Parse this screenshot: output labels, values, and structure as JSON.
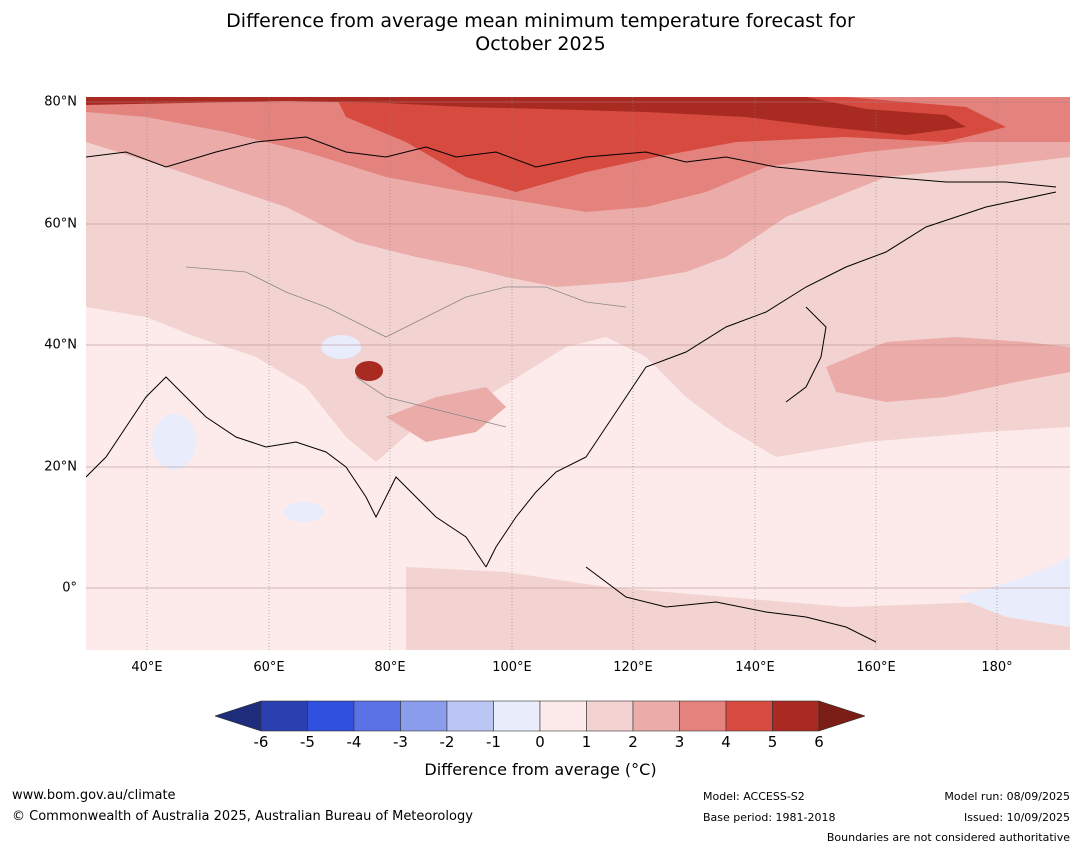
{
  "title_line1": "Difference from average mean minimum temperature forecast for",
  "title_line2": "October 2025",
  "lat_labels": [
    "80°N",
    "60°N",
    "40°N",
    "20°N",
    "0°"
  ],
  "lon_labels": [
    "40°E",
    "60°E",
    "80°E",
    "100°E",
    "120°E",
    "140°E",
    "160°E",
    "180°"
  ],
  "colorbar": {
    "ticks": [
      "-6",
      "-5",
      "-4",
      "-3",
      "-2",
      "-1",
      "0",
      "1",
      "2",
      "3",
      "4",
      "5",
      "6"
    ],
    "colors": [
      "#1d2d7c",
      "#2a3fb0",
      "#3050e0",
      "#5a72e6",
      "#8a9cec",
      "#bcc6f4",
      "#e8ecfb",
      "#fcebea",
      "#f3d3d1",
      "#ebaca9",
      "#e4827d",
      "#d64a3f",
      "#a82a20",
      "#7a1d15"
    ],
    "label": "Difference from average (°C)"
  },
  "footer": {
    "url": "www.bom.gov.au/climate",
    "copyright": "© Commonwealth of Australia 2025, Australian Bureau of Meteorology",
    "model": "Model: ACCESS-S2",
    "base_period": "Base period: 1981-2018",
    "model_run": "Model run: 08/09/2025",
    "issued": "Issued: 10/09/2025",
    "disclaimer": "Boundaries are not considered authoritative"
  }
}
